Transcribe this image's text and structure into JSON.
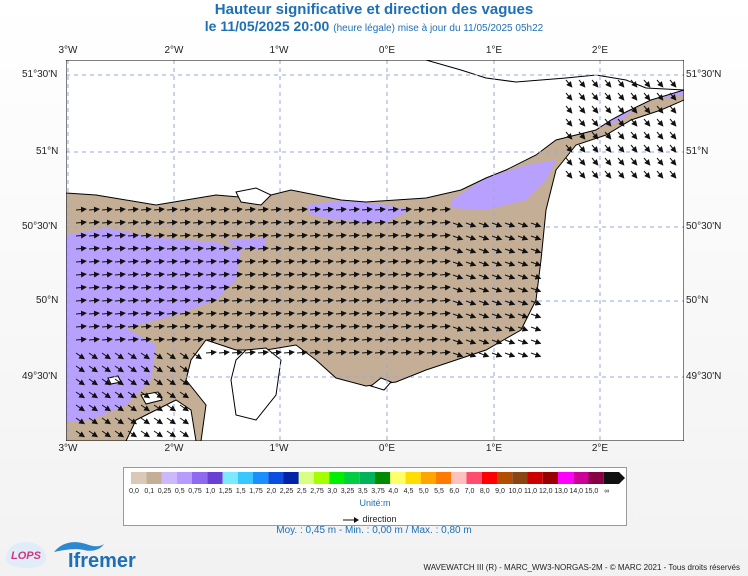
{
  "title": {
    "line1": "Hauteur significative et direction des vagues",
    "line2_date": "le 11/05/2025 20:00",
    "line2_note": "(heure légale) mise à jour du 11/05/2025 05h22"
  },
  "axes": {
    "lon_labels": [
      "3°W",
      "2°W",
      "1°W",
      "0°E",
      "1°E",
      "2°E"
    ],
    "lat_labels": [
      "51°30'N",
      "51°N",
      "50°30'N",
      "50°N",
      "49°30'N"
    ]
  },
  "map": {
    "region": "English Channel",
    "lon_range": [
      -3.0,
      2.8
    ],
    "lat_range": [
      49.1,
      51.6
    ],
    "grid": "dashed",
    "colors": {
      "sea_dominant": "#c4af96",
      "sea_low_band": "#b8a0ff",
      "sea_high_band": "#7a4fd1",
      "land": "#ffffff",
      "coast": "#000000",
      "grid": "#9aa8d8"
    },
    "arrow_direction": "westward-to-eastward flow"
  },
  "legend": {
    "scale_colors": [
      "#d9c9b6",
      "#c4af96",
      "#cbb8ff",
      "#b79bff",
      "#8e6af0",
      "#6a3fd3",
      "#7de9ff",
      "#38c7ff",
      "#1a90ff",
      "#0a4fe0",
      "#0022a6",
      "#d8ff80",
      "#a6ff00",
      "#00ee00",
      "#00cc44",
      "#00b35a",
      "#008a00",
      "#ffff66",
      "#ffdd00",
      "#ffa500",
      "#ff7b00",
      "#ffc0c0",
      "#ff4d6d",
      "#ff0000",
      "#b34d00",
      "#8b4513",
      "#cc0000",
      "#990000",
      "#ff00ff",
      "#cc0099",
      "#880044",
      "#111111"
    ],
    "scale_labels": [
      "0,0",
      "0,1",
      "0,25",
      "0,5",
      "0,75",
      "1,0",
      "1,25",
      "1,5",
      "1,75",
      "2,0",
      "2,25",
      "2,5",
      "2,75",
      "3,0",
      "3,25",
      "3,5",
      "3,75",
      "4,0",
      "4,5",
      "5,0",
      "5,5",
      "6,0",
      "7,0",
      "8,0",
      "9,0",
      "10,0",
      "11,0",
      "12,0",
      "13,0",
      "14,0",
      "15,0",
      "∞"
    ],
    "unit": "Unité:m",
    "direction_label": "direction"
  },
  "stats": {
    "text": "Moy. : 0,45 m   -   Min. : 0,00 m / Max. : 0,80 m"
  },
  "footer": {
    "text": "WAVEWATCH III (R) - MARC_WW3-NORGAS-2M - © MARC 2021 - Tous droits réservés"
  },
  "logos": {
    "lops": "LOPS",
    "ifremer": "Ifremer"
  }
}
